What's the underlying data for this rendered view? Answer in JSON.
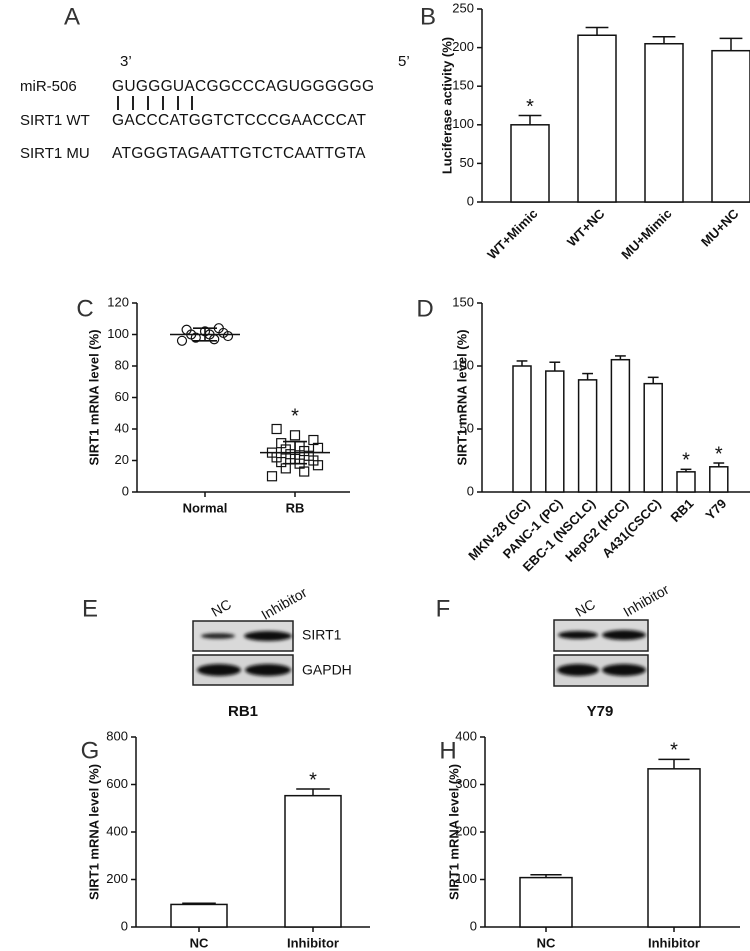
{
  "sequence_panel": {
    "panel_label": "A",
    "end_labels": [
      "3’",
      "5’"
    ],
    "rows": [
      {
        "name": "miR-506",
        "sequence": "GUGGGUACGGCCCAGUGGGGGG"
      },
      {
        "name": "SIRT1 WT",
        "sequence": "GACCCATGGTCTCCCGAACCCAT"
      },
      {
        "name": "SIRT1 MU",
        "sequence": "ATGGGTAGAATTGTCTCAATTGTA"
      }
    ]
  },
  "blots": [
    {
      "panel_label": "E",
      "lanes": [
        "NC",
        "Inhibitor"
      ],
      "rows": [
        "SIRT1",
        "GAPDH"
      ],
      "cell_line": "RB1"
    },
    {
      "panel_label": "F",
      "lanes": [
        "NC",
        "Inhibitor"
      ],
      "cell_line": "Y79"
    }
  ],
  "chart_data": [
    {
      "type": "bar",
      "panel_label": "B",
      "y_label": "Luciferase activity (%)",
      "categories": [
        "WT+Mimic",
        "WT+NC",
        "MU+Mimic",
        "MU+NC"
      ],
      "values": [
        100,
        216,
        205,
        196
      ],
      "errors": [
        12,
        10,
        9,
        16
      ],
      "significance": [
        "*",
        null,
        null,
        null
      ],
      "ylim": [
        0,
        250
      ],
      "yticks": [
        0,
        50,
        100,
        150,
        200,
        250
      ],
      "color": "#ffffff"
    },
    {
      "type": "strip",
      "panel_label": "C",
      "y_label": "SIRT1 mRNA level (%)",
      "categories": [
        "Normal",
        "RB"
      ],
      "points": [
        [
          96,
          97,
          98,
          99,
          100,
          100,
          101,
          102,
          103,
          104
        ],
        [
          10,
          13,
          15,
          17,
          18,
          19,
          20,
          21,
          22,
          23,
          24,
          25,
          26,
          27,
          28,
          29,
          31,
          33,
          36,
          40
        ]
      ],
      "markers": [
        "circle",
        "square"
      ],
      "mean": [
        100,
        25
      ],
      "sd": [
        4,
        7
      ],
      "significance": [
        null,
        "*"
      ],
      "ylim": [
        0,
        120
      ],
      "yticks": [
        0,
        20,
        40,
        60,
        80,
        100,
        120
      ]
    },
    {
      "type": "bar",
      "panel_label": "D",
      "y_label": "SIRT1 mRNA level (%)",
      "categories": [
        "MKN-28 (GC)",
        "PANC-1 (PC)",
        "EBC-1 (NSCLC)",
        "HepG2 (HCC)",
        "A431(CSCC)",
        "RB1",
        "Y79"
      ],
      "values": [
        100,
        96,
        89,
        105,
        86,
        16,
        20
      ],
      "errors": [
        4,
        7,
        5,
        3,
        5,
        2,
        3
      ],
      "significance": [
        null,
        null,
        null,
        null,
        null,
        "*",
        "*"
      ],
      "ylim": [
        0,
        150
      ],
      "yticks": [
        0,
        50,
        100,
        150
      ],
      "color": "#ffffff"
    },
    {
      "type": "bar",
      "panel_label": "G",
      "y_label": "SIRT1 mRNA level (%)",
      "categories": [
        "NC",
        "Inhibitor"
      ],
      "values": [
        95,
        553
      ],
      "errors": [
        5,
        28
      ],
      "significance": [
        null,
        "*"
      ],
      "ylim": [
        0,
        800
      ],
      "yticks": [
        0,
        200,
        400,
        600,
        800
      ],
      "color": "#ffffff"
    },
    {
      "type": "bar",
      "panel_label": "H",
      "y_label": "SIRT1 mRNA level (%)",
      "categories": [
        "NC",
        "Inhibitor"
      ],
      "values": [
        104,
        333
      ],
      "errors": [
        6,
        20
      ],
      "significance": [
        null,
        "*"
      ],
      "ylim": [
        0,
        400
      ],
      "yticks": [
        0,
        100,
        200,
        300,
        400
      ],
      "color": "#ffffff"
    }
  ]
}
